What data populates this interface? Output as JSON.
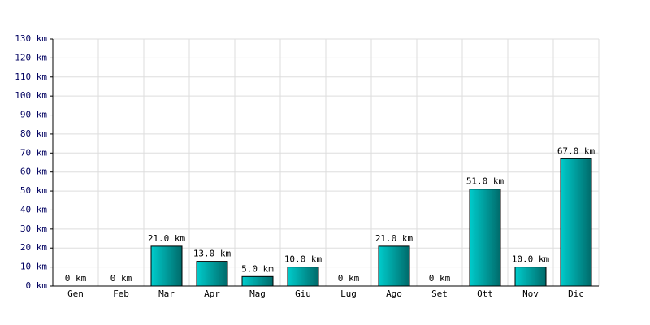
{
  "chart_data": {
    "type": "bar",
    "categories": [
      "Gen",
      "Feb",
      "Mar",
      "Apr",
      "Mag",
      "Giu",
      "Lug",
      "Ago",
      "Set",
      "Ott",
      "Nov",
      "Dic"
    ],
    "values": [
      0,
      0,
      21,
      13,
      5,
      10,
      0,
      21,
      0,
      51,
      10,
      67
    ],
    "value_labels": [
      "0 km",
      "0 km",
      "21.0 km",
      "13.0 km",
      "5.0 km",
      "10.0 km",
      "0 km",
      "21.0 km",
      "0 km",
      "51.0 km",
      "10.0 km",
      "67.0 km"
    ],
    "color": "#00cccc",
    "ylim": [
      0,
      130
    ],
    "yticks": [
      {
        "value": 0,
        "label": "0 km"
      },
      {
        "value": 10,
        "label": "10 km"
      },
      {
        "value": 20,
        "label": "20 km"
      },
      {
        "value": 30,
        "label": "30 km"
      },
      {
        "value": 40,
        "label": "40 km"
      },
      {
        "value": 50,
        "label": "50 km"
      },
      {
        "value": 60,
        "label": "60 km"
      },
      {
        "value": 70,
        "label": "70 km"
      },
      {
        "value": 80,
        "label": "80 km"
      },
      {
        "value": 90,
        "label": "90 km"
      },
      {
        "value": 100,
        "label": "100 km"
      },
      {
        "value": 110,
        "label": "110 km"
      },
      {
        "value": 120,
        "label": "120 km"
      },
      {
        "value": 130,
        "label": "130 km"
      }
    ],
    "grid": true
  }
}
